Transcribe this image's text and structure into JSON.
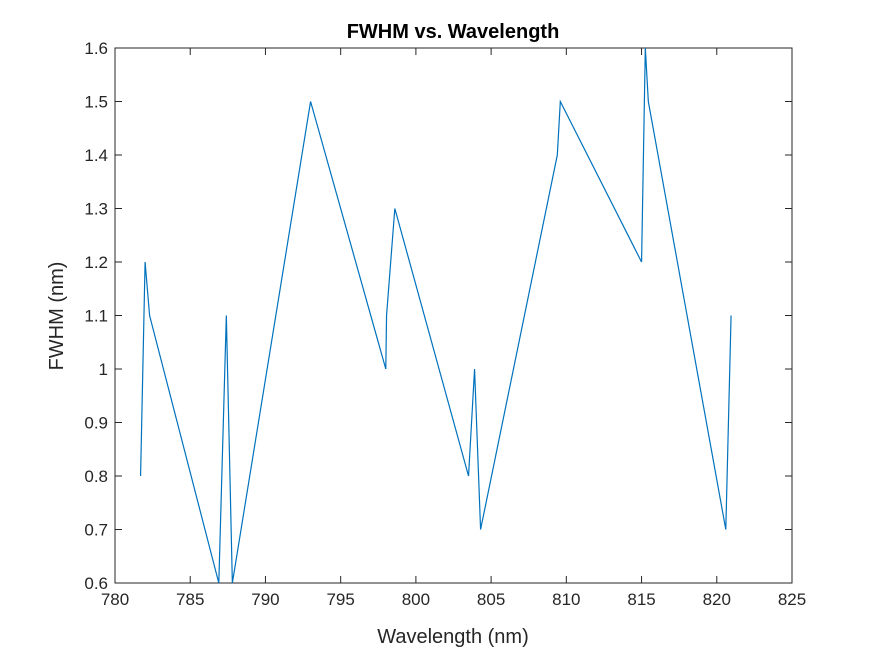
{
  "chart_data": {
    "type": "line",
    "title": "FWHM vs. Wavelength",
    "xlabel": "Wavelength (nm)",
    "ylabel": "FWHM (nm)",
    "xlim": [
      780,
      825
    ],
    "ylim": [
      0.6,
      1.6
    ],
    "xticks": [
      780,
      785,
      790,
      795,
      800,
      805,
      810,
      815,
      820,
      825
    ],
    "yticks": [
      0.6,
      0.7,
      0.8,
      0.9,
      1.0,
      1.1,
      1.2,
      1.3,
      1.4,
      1.5,
      1.6
    ],
    "ytick_labels": [
      "0.6",
      "0.7",
      "0.8",
      "0.9",
      "1",
      "1.1",
      "1.2",
      "1.3",
      "1.4",
      "1.5",
      "1.6"
    ],
    "grid": false,
    "line_color": "#0072BD",
    "series": [
      {
        "x": [
          781.7,
          782.0,
          782.3,
          786.9,
          787.4,
          787.8,
          793.0,
          798.0,
          798.05,
          798.6,
          803.5,
          803.9,
          804.3,
          809.4,
          809.6,
          815.0,
          815.25,
          815.45,
          820.6,
          820.95
        ],
        "y": [
          0.8,
          1.2,
          1.1,
          0.6,
          1.1,
          0.6,
          1.5,
          1.0,
          1.1,
          1.3,
          0.8,
          1.0,
          0.7,
          1.4,
          1.5,
          1.2,
          1.6,
          1.5,
          0.7,
          1.1
        ]
      }
    ]
  }
}
